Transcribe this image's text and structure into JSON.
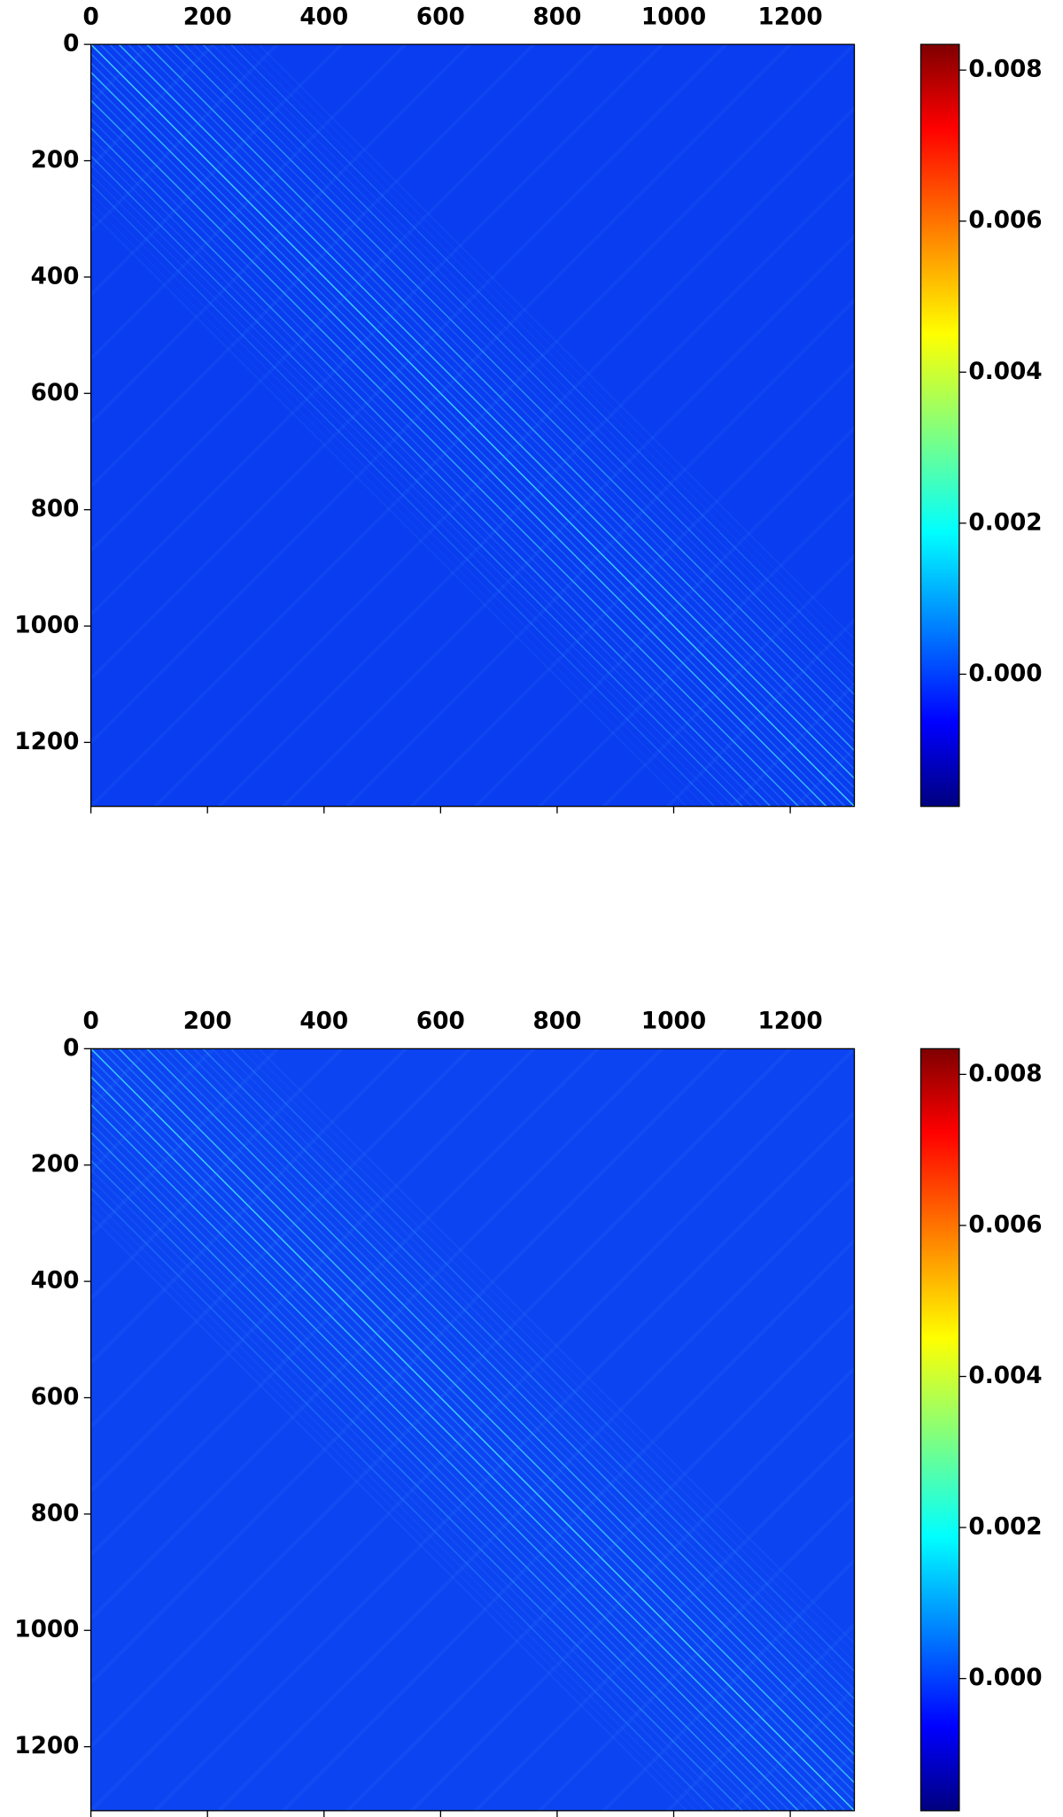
{
  "chart_data": [
    {
      "type": "heatmap",
      "colormap": "jet",
      "xlim": [
        0,
        1310
      ],
      "ylim": [
        0,
        1310
      ],
      "y_inverted": true,
      "xticks": [
        0,
        200,
        400,
        600,
        800,
        1000,
        1200
      ],
      "yticks": [
        0,
        200,
        400,
        600,
        800,
        1000,
        1200
      ],
      "colorbar": {
        "lim": [
          -0.00175,
          0.00834
        ],
        "ticks": [
          {
            "value": 0,
            "label": "0.000"
          },
          {
            "value": 0.002,
            "label": "0.002"
          },
          {
            "value": 0.004,
            "label": "0.004"
          },
          {
            "value": 0.006,
            "label": "0.006"
          },
          {
            "value": 0.008,
            "label": "0.008"
          }
        ]
      }
    },
    {
      "type": "heatmap",
      "colormap": "jet",
      "xlim": [
        0,
        1310
      ],
      "ylim": [
        0,
        1310
      ],
      "y_inverted": true,
      "xticks": [
        0,
        200,
        400,
        600,
        800,
        1000,
        1200
      ],
      "yticks": [
        0,
        200,
        400,
        600,
        800,
        1000,
        1200
      ],
      "colorbar": {
        "lim": [
          -0.00175,
          0.00834
        ],
        "ticks": [
          {
            "value": 0,
            "label": "0.000"
          },
          {
            "value": 0.002,
            "label": "0.002"
          },
          {
            "value": 0.004,
            "label": "0.004"
          },
          {
            "value": 0.006,
            "label": "0.006"
          },
          {
            "value": 0.008,
            "label": "0.008"
          }
        ]
      }
    }
  ]
}
